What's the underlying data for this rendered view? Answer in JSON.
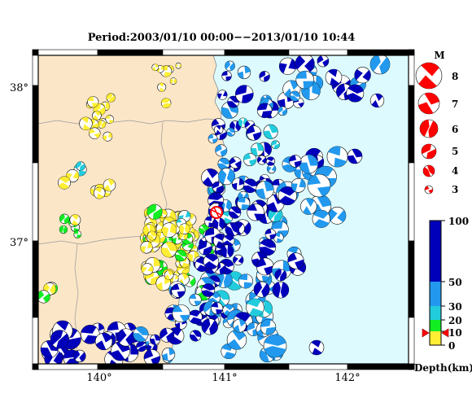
{
  "title": "Period:2003/01/10 00:00−−2013/01/10 10:44",
  "lat_labels": [
    "38°",
    "37°"
  ],
  "lon_labels": [
    "140°",
    "141°",
    "142°"
  ],
  "magnitude_legend": {
    "header": "M",
    "entries": [
      "8",
      "7",
      "6",
      "5",
      "4",
      "3"
    ]
  },
  "depth_legend": {
    "title": "Depth(km)",
    "ticks": [
      "100",
      "50",
      "30",
      "20",
      "10",
      "0"
    ],
    "colors": {
      "shallow_0_10": "#ffee33",
      "depth_10_20": "#11ee22",
      "depth_20_30": "#22ccdd",
      "depth_30_50": "#2299ee",
      "deep_50_100": "#0000bb"
    }
  },
  "map_colors": {
    "land": "#fce6c8",
    "sea": "#ddfbff",
    "highlight": "#ff0000"
  },
  "highlighted_event": "red-star-mechanism"
}
